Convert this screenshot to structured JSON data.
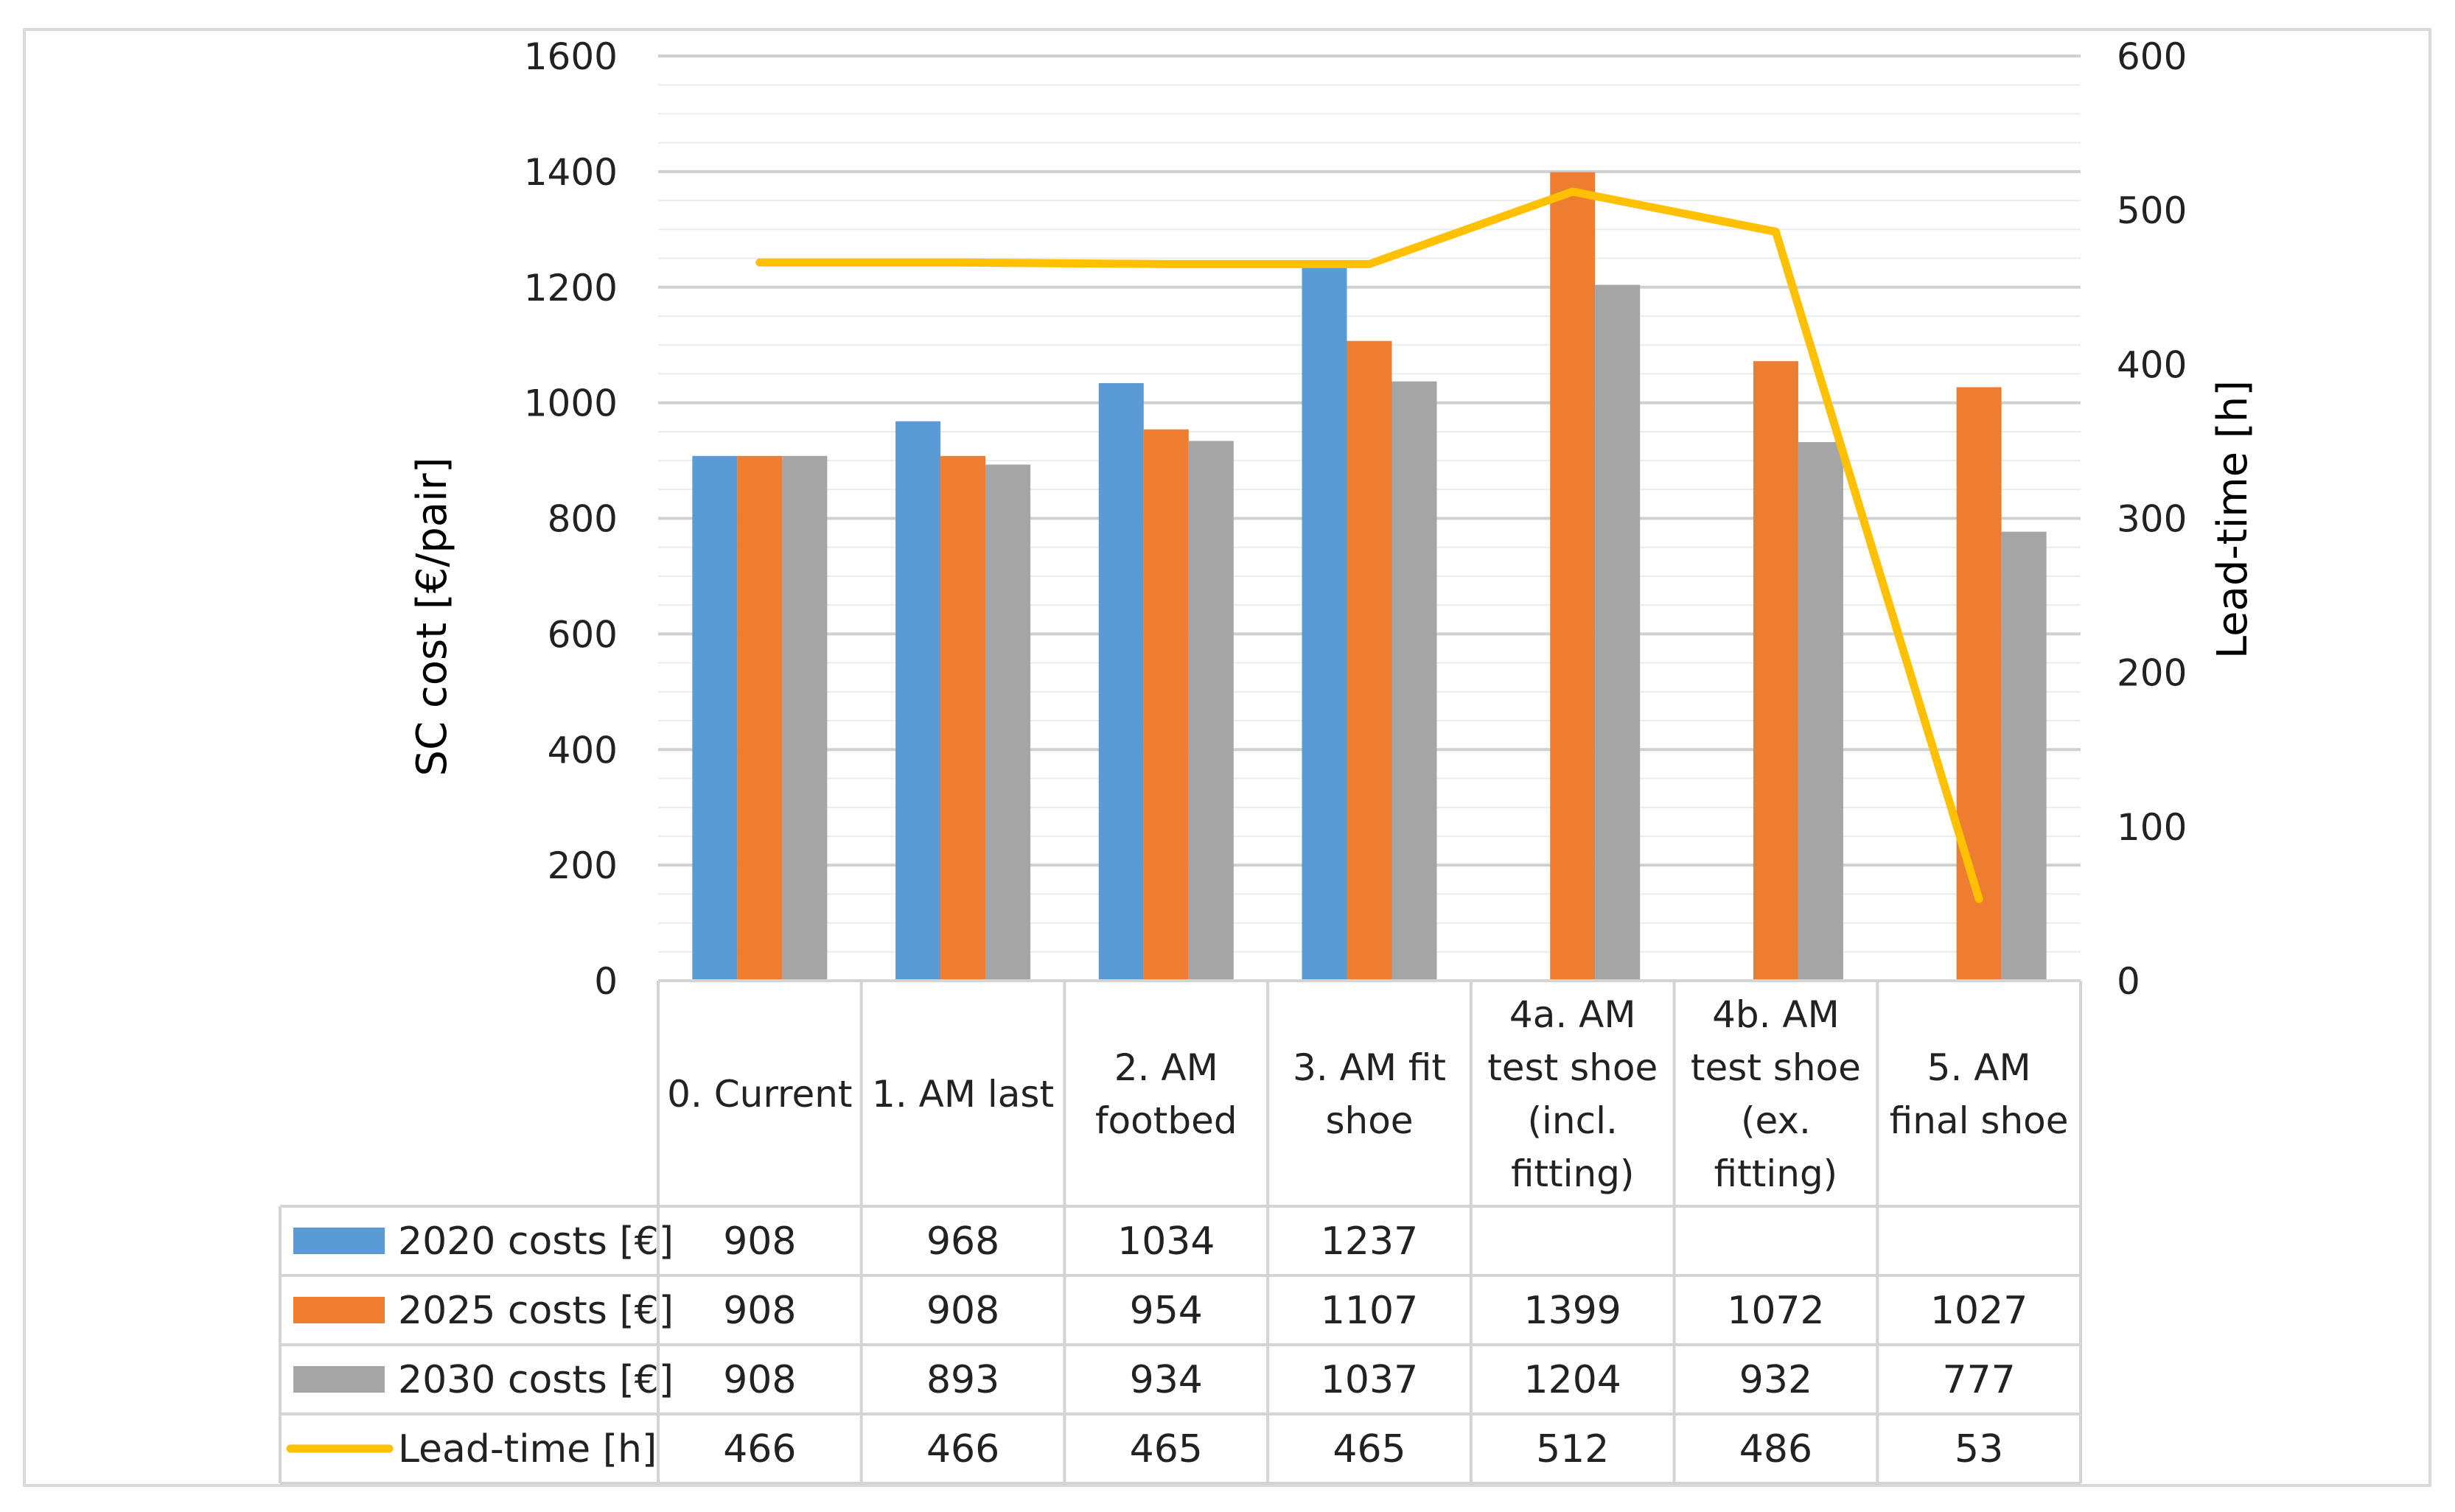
{
  "chart_data": {
    "type": "bar",
    "title": "",
    "categories": [
      [
        "0. Current"
      ],
      [
        "1. AM last"
      ],
      [
        "2. AM",
        "footbed"
      ],
      [
        "3. AM fit",
        "shoe"
      ],
      [
        "4a. AM",
        "test shoe",
        "(incl.",
        "fitting)"
      ],
      [
        "4b. AM",
        "test shoe",
        "(ex.",
        "fitting)"
      ],
      [
        "5. AM",
        "final shoe"
      ]
    ],
    "series": [
      {
        "name": "2020 costs [€]",
        "type": "bar",
        "axis": "left",
        "color": "#5B9BD5",
        "values": [
          908,
          968,
          1034,
          1237,
          null,
          null,
          null
        ]
      },
      {
        "name": "2025 costs [€]",
        "type": "bar",
        "axis": "left",
        "color": "#ED7D31",
        "values": [
          908,
          908,
          954,
          1107,
          1399,
          1072,
          1027
        ]
      },
      {
        "name": "2030 costs [€]",
        "type": "bar",
        "axis": "left",
        "color": "#A5A5A5",
        "values": [
          908,
          893,
          934,
          1037,
          1204,
          932,
          777
        ]
      },
      {
        "name": "Lead-time [h]",
        "type": "line",
        "axis": "right",
        "color": "#FFC000",
        "values": [
          466,
          466,
          465,
          465,
          512,
          486,
          53
        ]
      }
    ],
    "ylabel": "SC cost [€/pair]",
    "y2label": "Lead-time [h]",
    "ylim": [
      0,
      1600
    ],
    "y2lim": [
      0,
      600
    ],
    "yticks": [
      0,
      200,
      400,
      600,
      800,
      1000,
      1200,
      1400,
      1600
    ],
    "y2ticks": [
      0,
      100,
      200,
      300,
      400,
      500,
      600
    ],
    "grid": true,
    "legend": "data-table"
  }
}
